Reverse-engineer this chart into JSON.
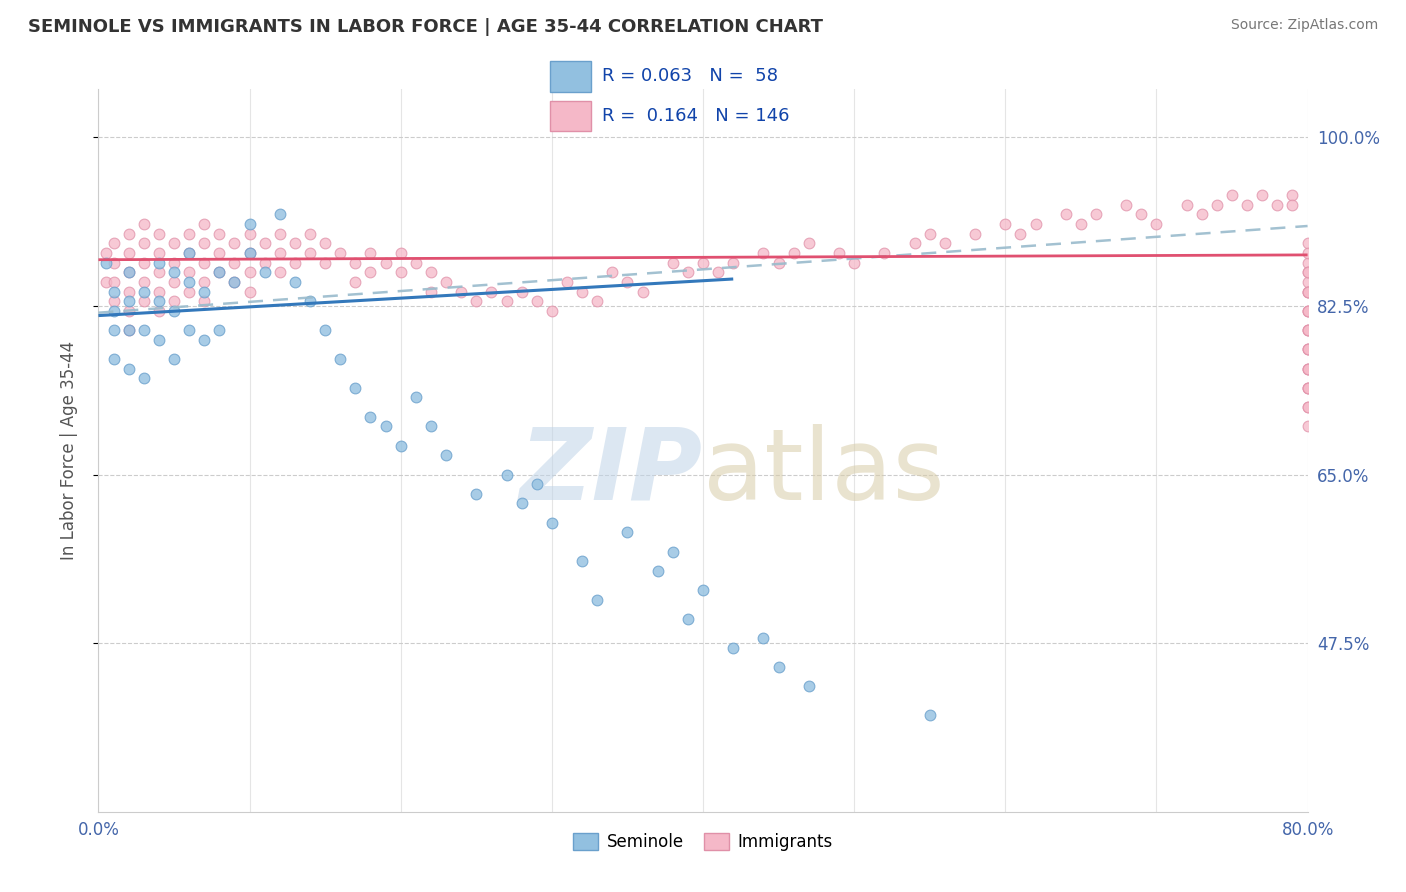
{
  "title": "SEMINOLE VS IMMIGRANTS IN LABOR FORCE | AGE 35-44 CORRELATION CHART",
  "source": "Source: ZipAtlas.com",
  "ylabel": "In Labor Force | Age 35-44",
  "xlim": [
    0.0,
    0.8
  ],
  "ylim": [
    0.3,
    1.05
  ],
  "xticks": [
    0.0,
    0.1,
    0.2,
    0.3,
    0.4,
    0.5,
    0.6,
    0.7,
    0.8
  ],
  "xticklabels": [
    "0.0%",
    "",
    "",
    "",
    "",
    "",
    "",
    "",
    "80.0%"
  ],
  "ytick_positions": [
    0.475,
    0.65,
    0.825,
    1.0
  ],
  "ytick_labels": [
    "47.5%",
    "65.0%",
    "82.5%",
    "100.0%"
  ],
  "seminole_color": "#92c0e0",
  "seminole_edge": "#6aa0cc",
  "immigrants_color": "#f5b8c8",
  "immigrants_edge": "#e090a8",
  "seminole_R": 0.063,
  "seminole_N": 58,
  "immigrants_R": 0.164,
  "immigrants_N": 146,
  "sem_line_color": "#3378bb",
  "imm_line_color": "#e05070",
  "dash_line_color": "#99bbcc",
  "seminole_x": [
    0.005,
    0.01,
    0.01,
    0.01,
    0.01,
    0.02,
    0.02,
    0.02,
    0.02,
    0.03,
    0.03,
    0.03,
    0.04,
    0.04,
    0.04,
    0.05,
    0.05,
    0.05,
    0.06,
    0.06,
    0.06,
    0.07,
    0.07,
    0.08,
    0.08,
    0.09,
    0.1,
    0.1,
    0.11,
    0.12,
    0.13,
    0.14,
    0.15,
    0.16,
    0.17,
    0.18,
    0.19,
    0.2,
    0.21,
    0.22,
    0.23,
    0.25,
    0.27,
    0.28,
    0.29,
    0.3,
    0.32,
    0.33,
    0.35,
    0.37,
    0.38,
    0.39,
    0.4,
    0.42,
    0.44,
    0.45,
    0.47,
    0.55
  ],
  "seminole_y": [
    0.87,
    0.84,
    0.82,
    0.8,
    0.77,
    0.86,
    0.83,
    0.8,
    0.76,
    0.84,
    0.8,
    0.75,
    0.87,
    0.83,
    0.79,
    0.86,
    0.82,
    0.77,
    0.88,
    0.85,
    0.8,
    0.84,
    0.79,
    0.86,
    0.8,
    0.85,
    0.91,
    0.88,
    0.86,
    0.92,
    0.85,
    0.83,
    0.8,
    0.77,
    0.74,
    0.71,
    0.7,
    0.68,
    0.73,
    0.7,
    0.67,
    0.63,
    0.65,
    0.62,
    0.64,
    0.6,
    0.56,
    0.52,
    0.59,
    0.55,
    0.57,
    0.5,
    0.53,
    0.47,
    0.48,
    0.45,
    0.43,
    0.4
  ],
  "immigrants_x": [
    0.005,
    0.005,
    0.01,
    0.01,
    0.01,
    0.01,
    0.02,
    0.02,
    0.02,
    0.02,
    0.02,
    0.02,
    0.03,
    0.03,
    0.03,
    0.03,
    0.03,
    0.04,
    0.04,
    0.04,
    0.04,
    0.04,
    0.05,
    0.05,
    0.05,
    0.05,
    0.06,
    0.06,
    0.06,
    0.06,
    0.07,
    0.07,
    0.07,
    0.07,
    0.07,
    0.08,
    0.08,
    0.08,
    0.09,
    0.09,
    0.09,
    0.1,
    0.1,
    0.1,
    0.1,
    0.11,
    0.11,
    0.12,
    0.12,
    0.12,
    0.13,
    0.13,
    0.14,
    0.14,
    0.15,
    0.15,
    0.16,
    0.17,
    0.17,
    0.18,
    0.18,
    0.19,
    0.2,
    0.2,
    0.21,
    0.22,
    0.22,
    0.23,
    0.24,
    0.25,
    0.26,
    0.27,
    0.28,
    0.29,
    0.3,
    0.31,
    0.32,
    0.33,
    0.34,
    0.35,
    0.36,
    0.38,
    0.39,
    0.4,
    0.41,
    0.42,
    0.44,
    0.45,
    0.46,
    0.47,
    0.49,
    0.5,
    0.52,
    0.54,
    0.55,
    0.56,
    0.58,
    0.6,
    0.61,
    0.62,
    0.64,
    0.65,
    0.66,
    0.68,
    0.69,
    0.7,
    0.72,
    0.73,
    0.74,
    0.75,
    0.76,
    0.77,
    0.78,
    0.79,
    0.79,
    0.8,
    0.8,
    0.8,
    0.8,
    0.8,
    0.8,
    0.8,
    0.8,
    0.8,
    0.8,
    0.8,
    0.8,
    0.8,
    0.8,
    0.8,
    0.8,
    0.8,
    0.8,
    0.8,
    0.8,
    0.8,
    0.8,
    0.8,
    0.8,
    0.8,
    0.8,
    0.8
  ],
  "immigrants_y": [
    0.88,
    0.85,
    0.89,
    0.87,
    0.85,
    0.83,
    0.9,
    0.88,
    0.86,
    0.84,
    0.82,
    0.8,
    0.91,
    0.89,
    0.87,
    0.85,
    0.83,
    0.9,
    0.88,
    0.86,
    0.84,
    0.82,
    0.89,
    0.87,
    0.85,
    0.83,
    0.9,
    0.88,
    0.86,
    0.84,
    0.91,
    0.89,
    0.87,
    0.85,
    0.83,
    0.9,
    0.88,
    0.86,
    0.89,
    0.87,
    0.85,
    0.9,
    0.88,
    0.86,
    0.84,
    0.89,
    0.87,
    0.9,
    0.88,
    0.86,
    0.89,
    0.87,
    0.9,
    0.88,
    0.89,
    0.87,
    0.88,
    0.87,
    0.85,
    0.88,
    0.86,
    0.87,
    0.88,
    0.86,
    0.87,
    0.86,
    0.84,
    0.85,
    0.84,
    0.83,
    0.84,
    0.83,
    0.84,
    0.83,
    0.82,
    0.85,
    0.84,
    0.83,
    0.86,
    0.85,
    0.84,
    0.87,
    0.86,
    0.87,
    0.86,
    0.87,
    0.88,
    0.87,
    0.88,
    0.89,
    0.88,
    0.87,
    0.88,
    0.89,
    0.9,
    0.89,
    0.9,
    0.91,
    0.9,
    0.91,
    0.92,
    0.91,
    0.92,
    0.93,
    0.92,
    0.91,
    0.93,
    0.92,
    0.93,
    0.94,
    0.93,
    0.94,
    0.93,
    0.94,
    0.93,
    0.85,
    0.87,
    0.89,
    0.84,
    0.86,
    0.82,
    0.84,
    0.8,
    0.82,
    0.78,
    0.8,
    0.76,
    0.78,
    0.74,
    0.76,
    0.72,
    0.74,
    0.7,
    0.72,
    0.74,
    0.76,
    0.78,
    0.8,
    0.82,
    0.84,
    0.86,
    0.88
  ]
}
